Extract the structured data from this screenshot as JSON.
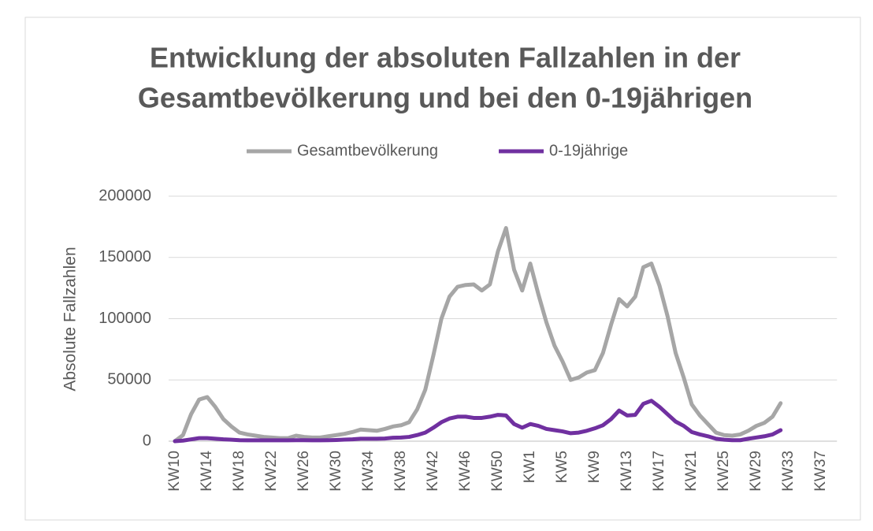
{
  "chart_data": {
    "type": "line",
    "title": [
      "Entwicklung der absoluten Fallzahlen in der",
      "Gesamtbevölkerung und bei den 0-19jährigen"
    ],
    "y_label": "Absolute Fallzahlen",
    "categories": [
      "KW10",
      null,
      null,
      null,
      "KW14",
      null,
      null,
      null,
      "KW18",
      null,
      null,
      null,
      "KW22",
      null,
      null,
      null,
      "KW26",
      null,
      null,
      null,
      "KW30",
      null,
      null,
      null,
      "KW34",
      null,
      null,
      null,
      "KW38",
      null,
      null,
      null,
      "KW42",
      null,
      null,
      null,
      "KW46",
      null,
      null,
      null,
      "KW50",
      null,
      null,
      null,
      "KW1",
      null,
      null,
      null,
      "KW5",
      null,
      null,
      null,
      "KW9",
      null,
      null,
      null,
      "KW13",
      null,
      null,
      null,
      "KW17",
      null,
      null,
      null,
      "KW21",
      null,
      null,
      null,
      "KW25",
      null,
      null,
      null,
      "KW29",
      null,
      null,
      null,
      "KW33",
      null,
      null,
      null,
      "KW37",
      null
    ],
    "series": [
      {
        "name": "Gesamtbevölkerung",
        "color": "#a6a6a6",
        "values": [
          0,
          5000,
          22000,
          34000,
          36000,
          28000,
          18000,
          12000,
          7000,
          5500,
          4500,
          3500,
          3000,
          2500,
          2500,
          4500,
          3500,
          3000,
          3000,
          4000,
          5000,
          6000,
          7500,
          9500,
          9000,
          8500,
          10000,
          12000,
          13000,
          15500,
          26000,
          42000,
          70000,
          100000,
          118000,
          126000,
          127500,
          128000,
          123000,
          128000,
          155000,
          174000,
          140000,
          123000,
          145000,
          120000,
          97000,
          78000,
          65000,
          50000,
          52000,
          56000,
          58000,
          72000,
          95000,
          116000,
          110000,
          118000,
          142000,
          145000,
          127000,
          102000,
          72000,
          52000,
          30000,
          21000,
          14000,
          7000,
          5000,
          4500,
          5500,
          8500,
          12500,
          15000,
          20000,
          31000,
          null,
          null,
          null,
          null,
          null,
          null
        ]
      },
      {
        "name": "0-19jährige",
        "color": "#7030a0",
        "values": [
          0,
          500,
          1500,
          2500,
          2500,
          2000,
          1500,
          1200,
          800,
          700,
          700,
          700,
          700,
          700,
          700,
          800,
          800,
          700,
          700,
          800,
          1000,
          1300,
          1500,
          2000,
          2000,
          2000,
          2200,
          2800,
          3000,
          3500,
          5000,
          7000,
          11000,
          15500,
          18500,
          20000,
          20000,
          19000,
          19000,
          20000,
          21500,
          21000,
          14000,
          11000,
          14000,
          12500,
          10000,
          9000,
          8000,
          6500,
          7000,
          8500,
          10500,
          13000,
          18000,
          25000,
          21000,
          21500,
          30500,
          33000,
          28000,
          22000,
          16000,
          12500,
          7500,
          5500,
          4000,
          2000,
          1200,
          800,
          800,
          2000,
          3000,
          4000,
          5500,
          9000,
          null,
          null,
          null,
          null,
          null,
          null
        ]
      }
    ],
    "ylim": [
      0,
      200000
    ],
    "yticks": [
      0,
      50000,
      100000,
      150000,
      200000
    ],
    "grid": true,
    "legend": "top"
  }
}
